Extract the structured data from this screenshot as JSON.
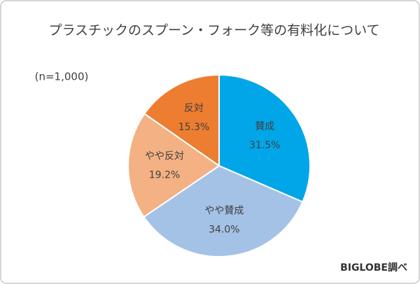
{
  "chart_data": {
    "type": "pie",
    "title": "プラスチックのスプーン・フォーク等の有料化について",
    "note": "(n=1,000)",
    "source": "BIGLOBE調べ",
    "categories": [
      "賛成",
      "やや賛成",
      "やや反対",
      "反対"
    ],
    "values": [
      31.5,
      34.0,
      19.2,
      15.3
    ],
    "value_labels": [
      "31.5%",
      "34.0%",
      "19.2%",
      "15.3%"
    ],
    "colors": [
      "#00a6e8",
      "#a4c2e6",
      "#f4b183",
      "#ed7d31"
    ]
  }
}
